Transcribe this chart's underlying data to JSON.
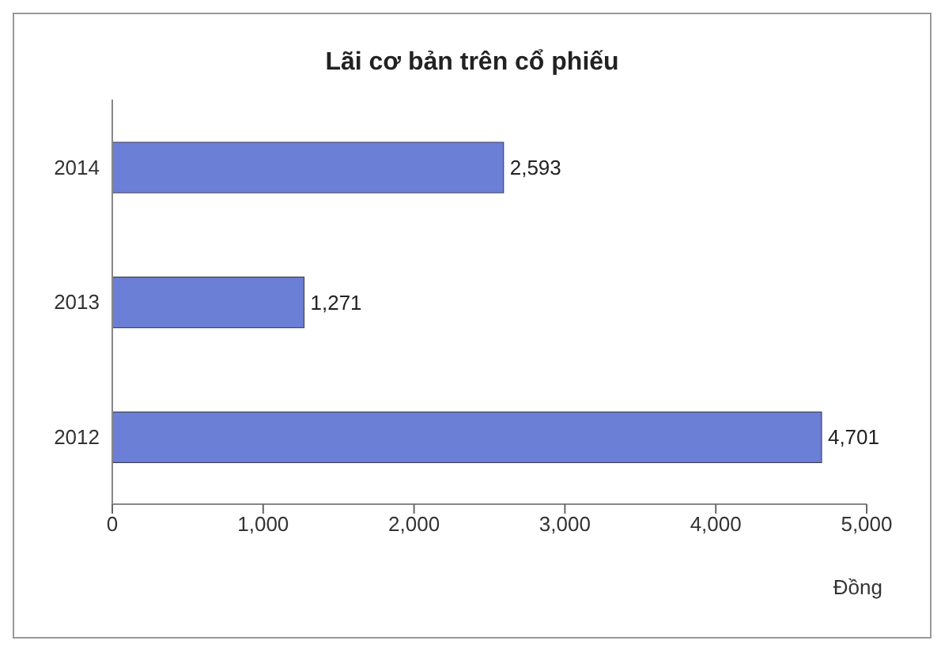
{
  "chart_data": {
    "type": "bar",
    "orientation": "horizontal",
    "title": "Lãi cơ bản trên cổ phiếu",
    "xlabel": "Đồng",
    "categories": [
      "2014",
      "2013",
      "2012"
    ],
    "series": [
      {
        "color": "#6b7fd7",
        "values": [
          2593,
          1271,
          4701
        ],
        "value_labels": [
          "2,593",
          "1,271",
          "4,701"
        ]
      }
    ],
    "xlim": [
      0,
      5000
    ],
    "xticks": [
      0,
      {
        "value": 1000,
        "label": "1,000"
      },
      {
        "value": 2000,
        "label": "2,000"
      },
      {
        "value": 3000,
        "label": "3,000"
      },
      {
        "value": 4000,
        "label": "4,000"
      },
      {
        "value": 5000,
        "label": "5,000"
      }
    ],
    "grid": false,
    "legend": false
  }
}
